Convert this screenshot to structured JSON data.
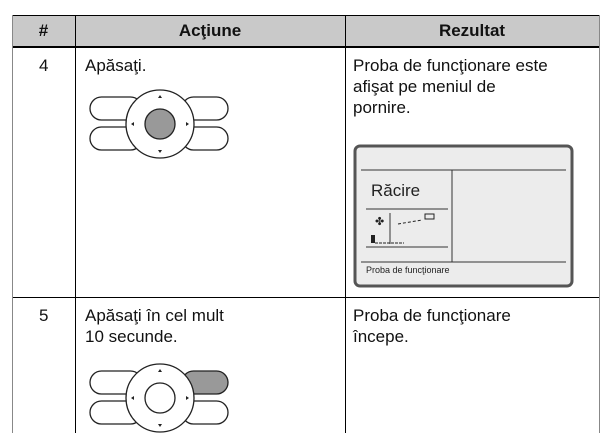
{
  "table": {
    "header": [
      "#",
      "Acţiune",
      "Rezultat"
    ],
    "rows": [
      {
        "number": "4",
        "action": [
          "Apăsaţi."
        ],
        "result": [
          "Proba de funcţionare este",
          "afişat pe meniul de",
          "pornire."
        ],
        "screen": {
          "mode": "Răcire",
          "status": "Proba de funcţionare"
        }
      },
      {
        "number": "5",
        "action": [
          "Apăsaţi în cel mult",
          "10 secunde."
        ],
        "result": [
          "Proba de funcţionare",
          "începe."
        ]
      }
    ]
  }
}
